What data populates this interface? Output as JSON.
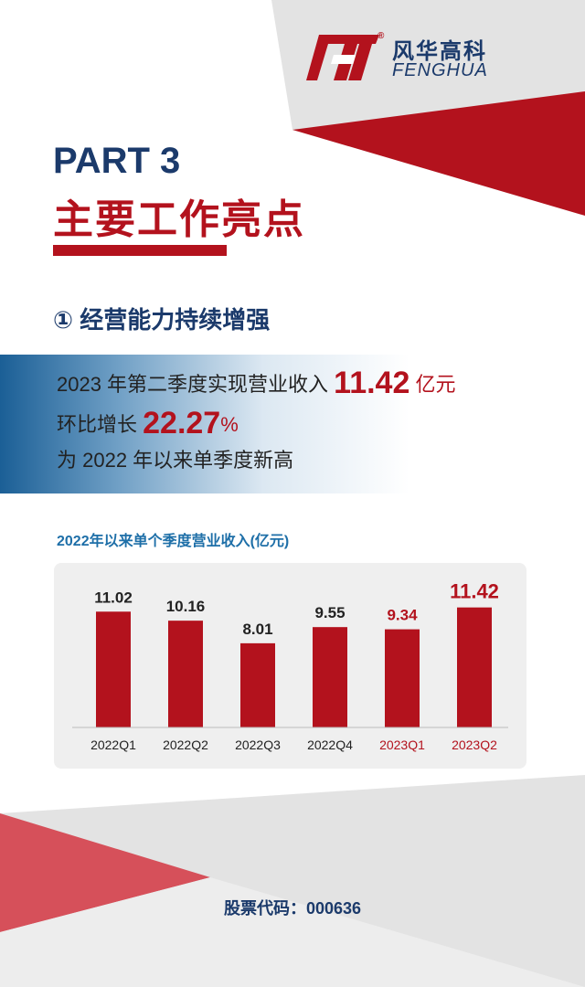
{
  "brand": {
    "name_cn": "风华高科",
    "name_en": "FENGHUA",
    "reg_mark": "®",
    "primary_color": "#b3121d",
    "navy_color": "#1b3a6b"
  },
  "header": {
    "part": "PART 3",
    "title": "主要工作亮点"
  },
  "section": {
    "heading": "① 经营能力持续增强"
  },
  "highlight": {
    "line1_prefix": "2023 年第二季度实现营业收入 ",
    "line1_value": "11.42",
    "line1_unit": " 亿元",
    "line2_prefix": "环比增长 ",
    "line2_value": "22.27",
    "line2_unit": "%",
    "line3": "为 2022 年以来单季度新高"
  },
  "chart_title": "2022年以来单个季度营业收入(亿元)",
  "chart_data": {
    "type": "bar",
    "title": "2022年以来单个季度营业收入(亿元)",
    "categories": [
      "2022Q1",
      "2022Q2",
      "2022Q3",
      "2022Q4",
      "2023Q1",
      "2023Q2"
    ],
    "values": [
      11.02,
      10.16,
      8.01,
      9.55,
      9.34,
      11.42
    ],
    "value_labels": [
      "11.02",
      "10.16",
      "8.01",
      "9.55",
      "9.34",
      "11.42"
    ],
    "highlight_categories": [
      "2023Q1",
      "2023Q2"
    ],
    "bar_color": "#b3121d",
    "label_color_default": "#222222",
    "label_color_highlight": "#b3121d",
    "ylim": [
      0,
      12
    ],
    "grid": false
  },
  "footer": {
    "stock_code": "股票代码：000636"
  }
}
